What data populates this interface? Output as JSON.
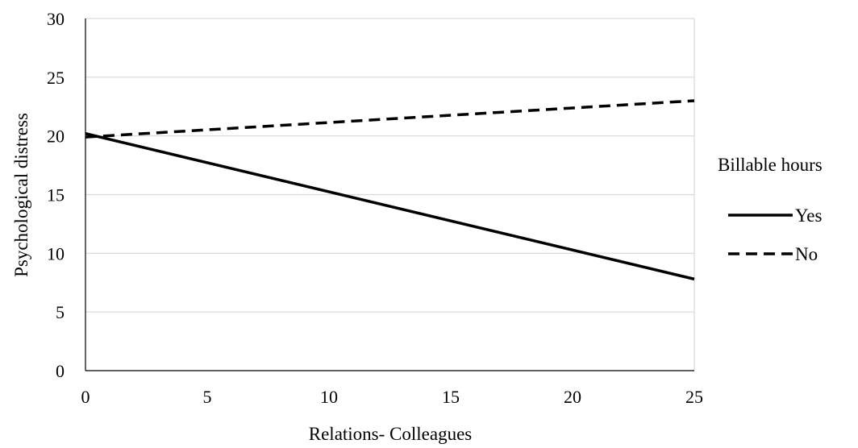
{
  "chart_data": {
    "type": "line",
    "xlabel": "Relations- Colleagues",
    "ylabel": "Psychological distress",
    "xlim": [
      0,
      25
    ],
    "ylim": [
      0,
      30
    ],
    "x_ticks": [
      0,
      5,
      10,
      15,
      20,
      25
    ],
    "y_ticks": [
      0,
      5,
      10,
      15,
      20,
      25,
      30
    ],
    "grid": "horizontal",
    "legend": {
      "title": "Billable hours",
      "placement": "right"
    },
    "series": [
      {
        "name": "Yes",
        "style": "solid",
        "color": "#000000",
        "x": [
          0,
          25
        ],
        "y": [
          20.2,
          7.8
        ]
      },
      {
        "name": "No",
        "style": "dashed",
        "color": "#000000",
        "x": [
          0,
          25
        ],
        "y": [
          19.9,
          23.0
        ]
      }
    ]
  }
}
